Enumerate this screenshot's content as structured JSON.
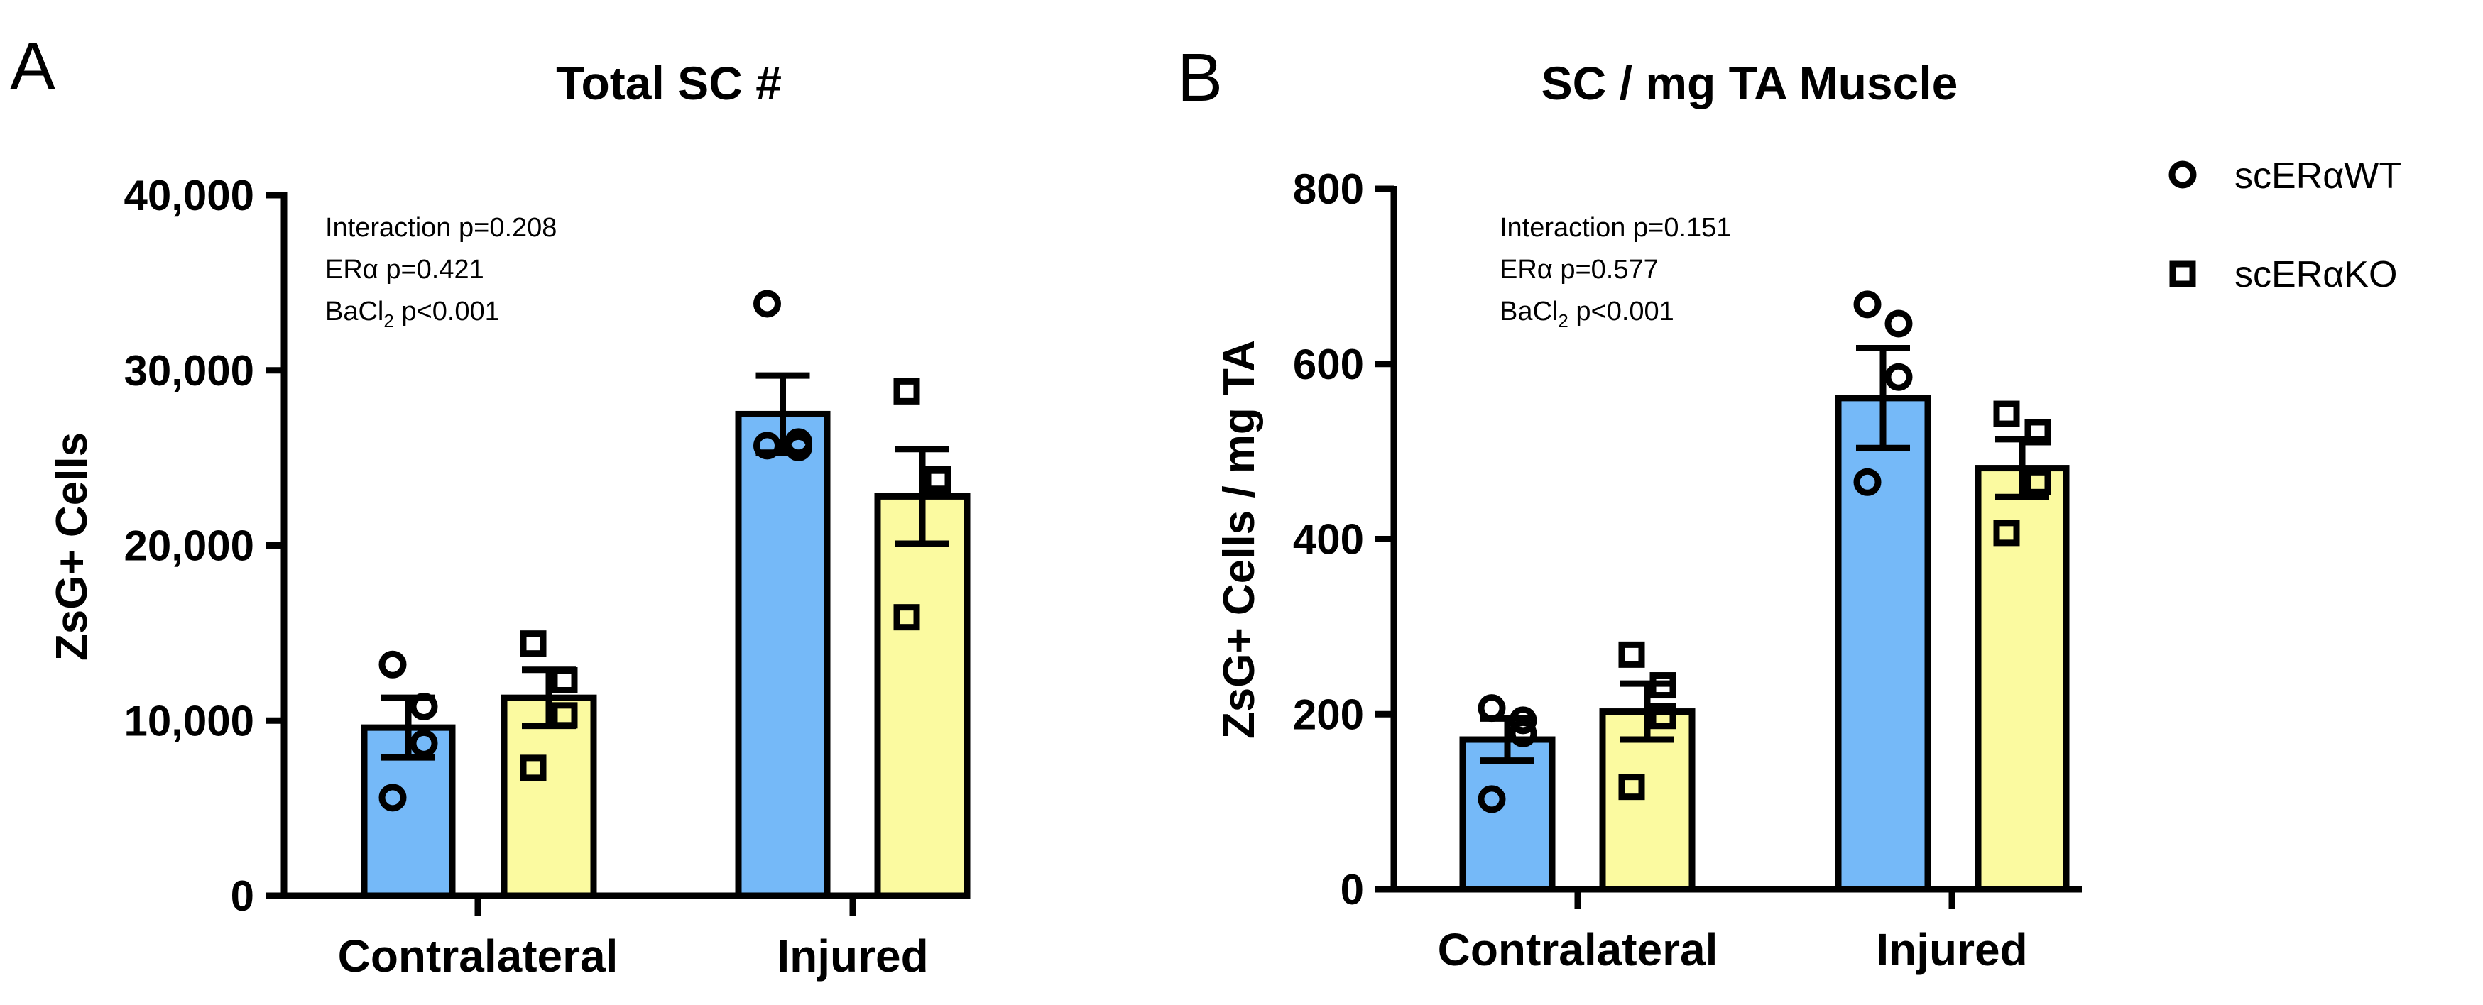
{
  "colors": {
    "scERaWT_fill": "#75b9f8",
    "scERaKO_fill": "#fbfaa0",
    "stroke": "#000000"
  },
  "legend": {
    "items": [
      {
        "label": "scERαWT",
        "marker": "circle",
        "fill": "#75b9f8"
      },
      {
        "label": "scERαKO",
        "marker": "square",
        "fill": "#fbfaa0"
      }
    ],
    "position": "right"
  },
  "panels": [
    {
      "letter": "A",
      "title": "Total SC #",
      "ylabel": "ZsG+ Cells",
      "ticks": [
        "0",
        "10,000",
        "20,000",
        "30,000",
        "40,000"
      ],
      "stats": {
        "line1": "Interaction p=0.208",
        "line2": "ERα p=0.421",
        "line3_main": "BaCl",
        "line3_sub": "2",
        "line3_rest": " p<0.001"
      },
      "categories": [
        "Contralateral",
        "Injured"
      ]
    },
    {
      "letter": "B",
      "title": "SC / mg TA Muscle",
      "ylabel": "ZsG+ Cells / mg TA",
      "ticks": [
        "0",
        "200",
        "400",
        "600",
        "800"
      ],
      "stats": {
        "line1": "Interaction p=0.151",
        "line2": "ERα p=0.577",
        "line3_main": "BaCl",
        "line3_sub": "2",
        "line3_rest": " p<0.001"
      },
      "categories": [
        "Contralateral",
        "Injured"
      ]
    }
  ],
  "chart_data": [
    {
      "type": "bar",
      "title": "Total SC #",
      "ylabel": "ZsG+ Cells",
      "xlabel": "",
      "categories": [
        "Contralateral",
        "Injured"
      ],
      "ylim": [
        0,
        40000
      ],
      "yticks": [
        0,
        10000,
        20000,
        30000,
        40000
      ],
      "grid": false,
      "series": [
        {
          "name": "scERαWT",
          "values": [
            9600,
            27500
          ],
          "sem": [
            1700,
            2200
          ],
          "points": [
            [
              13200,
              10800,
              8700,
              5600
            ],
            [
              33800,
              25900,
              25600,
              25700
            ]
          ]
        },
        {
          "name": "scERαKO",
          "values": [
            11300,
            22800
          ],
          "sem": [
            1600,
            2700
          ],
          "points": [
            [
              14400,
              12300,
              10300,
              7300
            ],
            [
              28800,
              23800,
              23700,
              15900
            ]
          ]
        }
      ],
      "annotations": [
        "Interaction p=0.208",
        "ERα p=0.421",
        "BaCl2 p<0.001"
      ]
    },
    {
      "type": "bar",
      "title": "SC / mg TA Muscle",
      "ylabel": "ZsG+ Cells / mg TA",
      "xlabel": "",
      "categories": [
        "Contralateral",
        "Injured"
      ],
      "ylim": [
        0,
        800
      ],
      "yticks": [
        0,
        200,
        400,
        600,
        800
      ],
      "grid": false,
      "series": [
        {
          "name": "scERαWT",
          "values": [
            171,
            561
          ],
          "sem": [
            24,
            57
          ],
          "points": [
            [
              207,
              193,
              178,
              103
            ],
            [
              668,
              646,
              585,
              465
            ]
          ]
        },
        {
          "name": "scERαKO",
          "values": [
            203,
            481
          ],
          "sem": [
            32,
            33
          ],
          "points": [
            [
              268,
              233,
              198,
              117
            ],
            [
              543,
              522,
              465,
              407
            ]
          ]
        }
      ],
      "annotations": [
        "Interaction p=0.151",
        "ERα p=0.577",
        "BaCl2 p<0.001"
      ]
    }
  ]
}
